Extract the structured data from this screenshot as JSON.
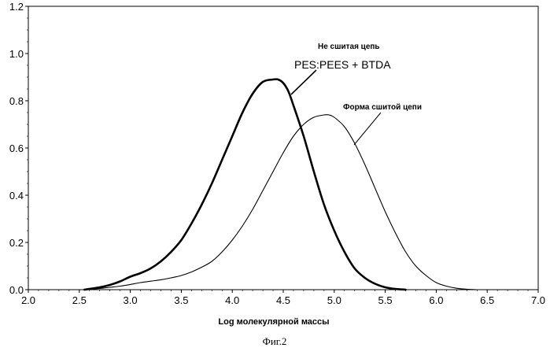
{
  "chart_data": {
    "type": "line",
    "xlabel": "Log молекулярной массы",
    "ylabel": "",
    "xlim": [
      2.0,
      7.0
    ],
    "ylim": [
      0.0,
      1.2
    ],
    "xticks": [
      "2.0",
      "2.5",
      "3.0",
      "3.5",
      "4.0",
      "4.5",
      "5.0",
      "5.5",
      "6.0",
      "6.5",
      "7.0"
    ],
    "yticks": [
      "0.0",
      "0.2",
      "0.4",
      "0.6",
      "0.8",
      "1.0",
      "1.2"
    ],
    "grid": false,
    "legend": "none",
    "series": [
      {
        "style": "bold",
        "x": [
          2.55,
          2.7,
          2.8,
          2.9,
          3.0,
          3.1,
          3.2,
          3.3,
          3.4,
          3.5,
          3.6,
          3.7,
          3.8,
          3.9,
          4.0,
          4.1,
          4.2,
          4.3,
          4.4,
          4.45,
          4.5,
          4.55,
          4.6,
          4.7,
          4.8,
          4.9,
          5.0,
          5.1,
          5.2,
          5.3,
          5.4,
          5.5,
          5.6,
          5.7
        ],
        "y": [
          0.0,
          0.01,
          0.02,
          0.035,
          0.055,
          0.07,
          0.09,
          0.12,
          0.16,
          0.21,
          0.28,
          0.36,
          0.45,
          0.55,
          0.65,
          0.75,
          0.83,
          0.88,
          0.89,
          0.89,
          0.875,
          0.84,
          0.78,
          0.65,
          0.5,
          0.36,
          0.25,
          0.16,
          0.09,
          0.05,
          0.025,
          0.01,
          0.003,
          0.0
        ]
      },
      {
        "style": "thin",
        "x": [
          2.55,
          2.7,
          2.8,
          2.9,
          3.0,
          3.1,
          3.2,
          3.3,
          3.4,
          3.5,
          3.6,
          3.7,
          3.8,
          3.9,
          4.0,
          4.1,
          4.2,
          4.3,
          4.4,
          4.5,
          4.6,
          4.7,
          4.8,
          4.9,
          4.95,
          5.0,
          5.1,
          5.2,
          5.3,
          5.4,
          5.5,
          5.6,
          5.7,
          5.8,
          5.9,
          6.0,
          6.1,
          6.2,
          6.3,
          6.4
        ],
        "y": [
          0.0,
          0.005,
          0.01,
          0.015,
          0.022,
          0.03,
          0.036,
          0.042,
          0.05,
          0.06,
          0.075,
          0.095,
          0.12,
          0.16,
          0.21,
          0.27,
          0.34,
          0.42,
          0.5,
          0.58,
          0.65,
          0.7,
          0.73,
          0.74,
          0.74,
          0.73,
          0.69,
          0.62,
          0.53,
          0.43,
          0.33,
          0.24,
          0.16,
          0.1,
          0.06,
          0.03,
          0.015,
          0.006,
          0.002,
          0.0
        ]
      }
    ],
    "annotations": {
      "uncrosslinked_label": "Не сшитая цепь",
      "uncrosslinked_formula": "PES:PEES + BTDA",
      "crosslinked_label": "Форма сшитой цепи"
    }
  },
  "figure_caption": "Фиг.2"
}
